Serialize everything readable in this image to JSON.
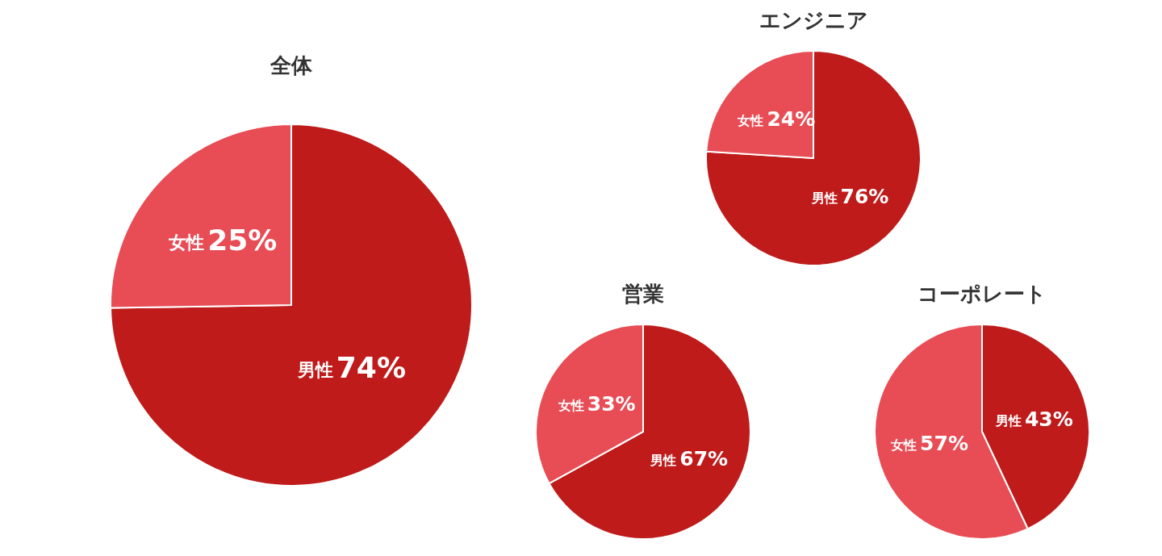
{
  "chart_data": [
    {
      "type": "pie",
      "title": "全体",
      "categories": [
        "男性",
        "女性"
      ],
      "values": [
        74,
        25
      ],
      "colors": [
        "#bf1b1b",
        "#e84c55"
      ],
      "value_labels": [
        "74%",
        "25%"
      ]
    },
    {
      "type": "pie",
      "title": "エンジニア",
      "categories": [
        "男性",
        "女性"
      ],
      "values": [
        76,
        24
      ],
      "colors": [
        "#bf1b1b",
        "#e84c55"
      ],
      "value_labels": [
        "76%",
        "24%"
      ]
    },
    {
      "type": "pie",
      "title": "営業",
      "categories": [
        "男性",
        "女性"
      ],
      "values": [
        67,
        33
      ],
      "colors": [
        "#bf1b1b",
        "#e84c55"
      ],
      "value_labels": [
        "67%",
        "33%"
      ]
    },
    {
      "type": "pie",
      "title": "コーポレート",
      "categories": [
        "男性",
        "女性"
      ],
      "values": [
        43,
        57
      ],
      "colors": [
        "#bf1b1b",
        "#e84c55"
      ],
      "value_labels": [
        "43%",
        "57%"
      ]
    }
  ]
}
